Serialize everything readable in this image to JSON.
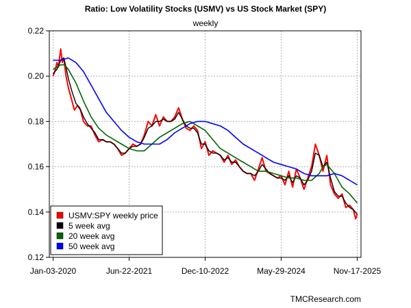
{
  "chart_data": {
    "type": "line",
    "title": "Ratio: Low Volatility Stocks (USMV) vs US Stock Market (SPY)",
    "subtitle": "weekly",
    "source": "TMCResearch.com",
    "xlabel": "",
    "ylabel": "",
    "ylim": [
      0.12,
      0.22
    ],
    "y_ticks": [
      "0.12",
      "0.14",
      "0.16",
      "0.18",
      "0.20",
      "0.22"
    ],
    "x_ticks": [
      "Jan-03-2020",
      "Jun-22-2021",
      "Dec-10-2022",
      "May-29-2024",
      "Nov-17-2025"
    ],
    "x_tick_positions": [
      0,
      1,
      2,
      3,
      4
    ],
    "xlim": [
      -0.05,
      4.05
    ],
    "grid": true,
    "legend_position": "bottom-left",
    "series": [
      {
        "name": "USMV:SPY weekly price",
        "color": "#ff0000",
        "x": [
          0,
          0.03,
          0.05,
          0.07,
          0.1,
          0.12,
          0.14,
          0.17,
          0.2,
          0.24,
          0.28,
          0.32,
          0.36,
          0.4,
          0.45,
          0.5,
          0.55,
          0.6,
          0.65,
          0.7,
          0.75,
          0.8,
          0.85,
          0.9,
          0.95,
          1.0,
          1.05,
          1.1,
          1.15,
          1.2,
          1.25,
          1.3,
          1.35,
          1.4,
          1.45,
          1.5,
          1.55,
          1.6,
          1.65,
          1.7,
          1.75,
          1.8,
          1.85,
          1.9,
          1.95,
          2.0,
          2.05,
          2.1,
          2.15,
          2.2,
          2.25,
          2.3,
          2.35,
          2.4,
          2.45,
          2.5,
          2.55,
          2.6,
          2.65,
          2.7,
          2.75,
          2.8,
          2.85,
          2.9,
          2.95,
          3.0,
          3.05,
          3.1,
          3.15,
          3.2,
          3.25,
          3.3,
          3.35,
          3.4,
          3.45,
          3.5,
          3.55,
          3.6,
          3.65,
          3.7,
          3.75,
          3.8,
          3.85,
          3.9,
          3.95,
          3.98,
          4.0
        ],
        "values": [
          0.2,
          0.203,
          0.206,
          0.204,
          0.212,
          0.206,
          0.208,
          0.2,
          0.195,
          0.19,
          0.185,
          0.187,
          0.185,
          0.18,
          0.178,
          0.178,
          0.174,
          0.171,
          0.172,
          0.171,
          0.171,
          0.17,
          0.168,
          0.165,
          0.166,
          0.168,
          0.17,
          0.169,
          0.17,
          0.174,
          0.18,
          0.178,
          0.183,
          0.178,
          0.182,
          0.18,
          0.18,
          0.182,
          0.186,
          0.181,
          0.177,
          0.176,
          0.178,
          0.176,
          0.168,
          0.171,
          0.165,
          0.167,
          0.166,
          0.165,
          0.162,
          0.165,
          0.161,
          0.163,
          0.16,
          0.158,
          0.157,
          0.157,
          0.154,
          0.159,
          0.164,
          0.158,
          0.157,
          0.156,
          0.155,
          0.156,
          0.152,
          0.158,
          0.151,
          0.159,
          0.155,
          0.15,
          0.155,
          0.16,
          0.17,
          0.165,
          0.158,
          0.165,
          0.152,
          0.148,
          0.146,
          0.148,
          0.142,
          0.143,
          0.141,
          0.137,
          0.139
        ]
      },
      {
        "name": "5 week avg",
        "color": "#000000",
        "x": [
          0,
          0.05,
          0.1,
          0.14,
          0.17,
          0.2,
          0.25,
          0.3,
          0.35,
          0.4,
          0.45,
          0.5,
          0.55,
          0.6,
          0.65,
          0.7,
          0.75,
          0.8,
          0.85,
          0.9,
          0.95,
          1.0,
          1.05,
          1.1,
          1.15,
          1.2,
          1.25,
          1.3,
          1.35,
          1.4,
          1.45,
          1.5,
          1.55,
          1.6,
          1.65,
          1.7,
          1.75,
          1.8,
          1.85,
          1.9,
          1.95,
          2.0,
          2.05,
          2.1,
          2.15,
          2.2,
          2.25,
          2.3,
          2.35,
          2.4,
          2.45,
          2.5,
          2.55,
          2.6,
          2.65,
          2.7,
          2.75,
          2.8,
          2.85,
          2.9,
          2.95,
          3.0,
          3.05,
          3.1,
          3.15,
          3.2,
          3.25,
          3.3,
          3.35,
          3.4,
          3.45,
          3.5,
          3.55,
          3.6,
          3.65,
          3.7,
          3.75,
          3.8,
          3.85,
          3.9,
          3.95,
          4.0
        ],
        "values": [
          0.201,
          0.203,
          0.207,
          0.208,
          0.204,
          0.199,
          0.193,
          0.188,
          0.186,
          0.182,
          0.179,
          0.177,
          0.175,
          0.172,
          0.172,
          0.171,
          0.171,
          0.17,
          0.168,
          0.166,
          0.166,
          0.168,
          0.169,
          0.169,
          0.17,
          0.173,
          0.177,
          0.178,
          0.18,
          0.18,
          0.181,
          0.18,
          0.18,
          0.181,
          0.184,
          0.181,
          0.178,
          0.177,
          0.177,
          0.175,
          0.17,
          0.17,
          0.167,
          0.166,
          0.166,
          0.165,
          0.163,
          0.164,
          0.162,
          0.162,
          0.16,
          0.158,
          0.157,
          0.157,
          0.156,
          0.158,
          0.161,
          0.159,
          0.157,
          0.156,
          0.155,
          0.155,
          0.154,
          0.156,
          0.153,
          0.156,
          0.155,
          0.152,
          0.154,
          0.158,
          0.166,
          0.165,
          0.16,
          0.162,
          0.155,
          0.149,
          0.147,
          0.147,
          0.144,
          0.142,
          0.141,
          0.139
        ]
      },
      {
        "name": "20 week avg",
        "color": "#006400",
        "x": [
          0,
          0.05,
          0.1,
          0.15,
          0.2,
          0.3,
          0.4,
          0.5,
          0.6,
          0.7,
          0.8,
          0.9,
          1.0,
          1.1,
          1.2,
          1.3,
          1.4,
          1.5,
          1.6,
          1.7,
          1.8,
          1.9,
          2.0,
          2.1,
          2.2,
          2.3,
          2.4,
          2.5,
          2.6,
          2.7,
          2.8,
          2.9,
          3.0,
          3.1,
          3.2,
          3.3,
          3.4,
          3.5,
          3.55,
          3.6,
          3.7,
          3.8,
          3.9,
          4.0
        ],
        "values": [
          0.203,
          0.204,
          0.205,
          0.205,
          0.203,
          0.197,
          0.189,
          0.182,
          0.177,
          0.174,
          0.172,
          0.17,
          0.168,
          0.167,
          0.167,
          0.17,
          0.173,
          0.175,
          0.177,
          0.179,
          0.18,
          0.178,
          0.176,
          0.172,
          0.168,
          0.166,
          0.164,
          0.162,
          0.16,
          0.158,
          0.158,
          0.157,
          0.156,
          0.155,
          0.155,
          0.154,
          0.154,
          0.157,
          0.16,
          0.161,
          0.157,
          0.151,
          0.148,
          0.144
        ]
      },
      {
        "name": "50 week avg",
        "color": "#0000ff",
        "x": [
          0,
          0.1,
          0.2,
          0.3,
          0.4,
          0.5,
          0.6,
          0.7,
          0.8,
          0.9,
          1.0,
          1.1,
          1.2,
          1.3,
          1.4,
          1.5,
          1.6,
          1.7,
          1.8,
          1.9,
          2.0,
          2.1,
          2.2,
          2.3,
          2.4,
          2.5,
          2.6,
          2.7,
          2.8,
          2.9,
          3.0,
          3.1,
          3.2,
          3.3,
          3.4,
          3.5,
          3.6,
          3.7,
          3.8,
          3.9,
          4.0
        ],
        "values": [
          0.207,
          0.207,
          0.208,
          0.206,
          0.202,
          0.196,
          0.19,
          0.184,
          0.18,
          0.176,
          0.173,
          0.171,
          0.17,
          0.17,
          0.17,
          0.172,
          0.175,
          0.177,
          0.179,
          0.18,
          0.18,
          0.179,
          0.178,
          0.176,
          0.173,
          0.17,
          0.168,
          0.166,
          0.164,
          0.162,
          0.161,
          0.16,
          0.159,
          0.157,
          0.156,
          0.156,
          0.156,
          0.157,
          0.156,
          0.154,
          0.152
        ]
      }
    ]
  }
}
